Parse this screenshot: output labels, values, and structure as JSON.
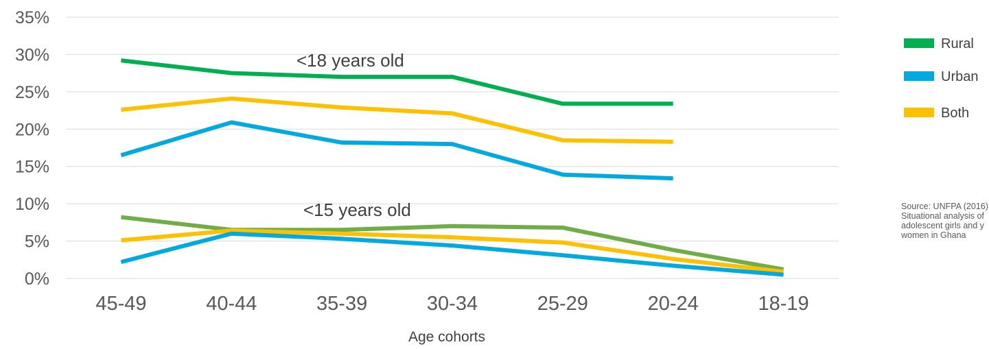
{
  "chart_data": {
    "type": "line",
    "categories": [
      "45-49",
      "40-44",
      "35-39",
      "30-34",
      "25-29",
      "20-24",
      "18-19"
    ],
    "xlabel": "Age cohorts",
    "ylabel": "",
    "ylim": [
      0,
      35
    ],
    "y_ticks": [
      "0%",
      "5%",
      "10%",
      "15%",
      "20%",
      "25%",
      "30%",
      "35%"
    ],
    "grid": true,
    "legend": {
      "placement": "right",
      "entries": [
        {
          "label": "Rural",
          "color": "#00b050"
        },
        {
          "label": "Urban",
          "color": "#00a9e0"
        },
        {
          "label": "Both",
          "color": "#ffc000"
        }
      ]
    },
    "annotations": [
      {
        "text": "<18 years old",
        "x": "40-44",
        "y": 30.7
      },
      {
        "text": "<15 years old",
        "x": "40-44",
        "y": 10.4
      }
    ],
    "series": [
      {
        "group": "<18 years old",
        "legend": "Rural",
        "color": "#00b050",
        "values": [
          29.2,
          27.5,
          27.0,
          27.0,
          23.4,
          23.4,
          null
        ]
      },
      {
        "group": "<18 years old",
        "legend": "Both",
        "color": "#ffc000",
        "values": [
          22.6,
          24.1,
          22.9,
          22.1,
          18.5,
          18.3,
          null
        ]
      },
      {
        "group": "<18 years old",
        "legend": "Urban",
        "color": "#00a9e0",
        "values": [
          16.5,
          20.9,
          18.2,
          18.0,
          13.9,
          13.4,
          null
        ]
      },
      {
        "group": "<15 years old",
        "legend": "Rural",
        "color": "#70ad47",
        "values": [
          8.2,
          6.5,
          6.5,
          7.0,
          6.8,
          3.8,
          1.2
        ]
      },
      {
        "group": "<15 years old",
        "legend": "Both",
        "color": "#ffc000",
        "values": [
          5.1,
          6.4,
          6.0,
          5.5,
          4.8,
          2.6,
          0.9
        ]
      },
      {
        "group": "<15 years old",
        "legend": "Urban",
        "color": "#00a9e0",
        "values": [
          2.2,
          6.0,
          5.3,
          4.4,
          3.1,
          1.7,
          0.5
        ]
      }
    ]
  },
  "source_note": {
    "lines": [
      "Source: UNFPA (2016)",
      "Situational analysis of",
      "adolescent girls and y",
      "women in Ghana"
    ]
  }
}
